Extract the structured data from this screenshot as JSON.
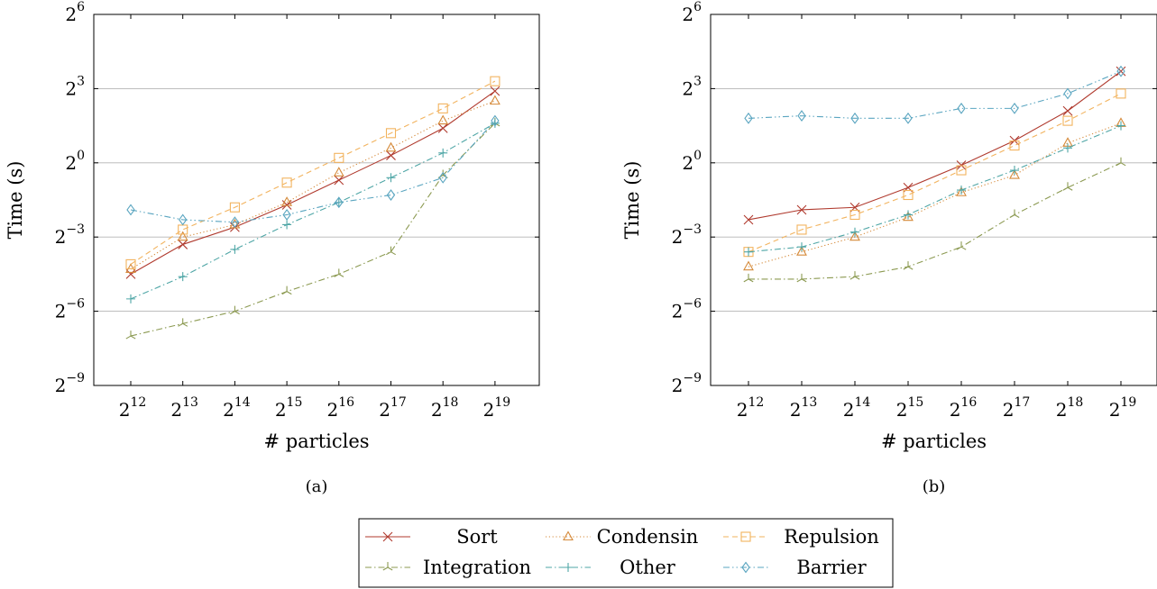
{
  "chart_data": [
    {
      "type": "line",
      "caption": "(a)",
      "xlabel": "# particles",
      "ylabel": "Time (s)",
      "y_scale": "log2",
      "ylim": [
        -9,
        6
      ],
      "x_ticks": [
        12,
        13,
        14,
        15,
        16,
        17,
        18,
        19
      ],
      "y_ticks": [
        -9,
        -6,
        -3,
        0,
        3,
        6
      ],
      "grid": "horizontal",
      "series": [
        {
          "name": "Sort",
          "exponents": [
            -4.5,
            -3.3,
            -2.6,
            -1.7,
            -0.7,
            0.3,
            1.4,
            2.9
          ]
        },
        {
          "name": "Condensin",
          "exponents": [
            -4.3,
            -3.0,
            -2.5,
            -1.6,
            -0.4,
            0.6,
            1.7,
            2.5
          ]
        },
        {
          "name": "Repulsion",
          "exponents": [
            -4.1,
            -2.7,
            -1.8,
            -0.8,
            0.2,
            1.2,
            2.2,
            3.3
          ]
        },
        {
          "name": "Integration",
          "exponents": [
            -7.0,
            -6.5,
            -6.0,
            -5.2,
            -4.5,
            -3.6,
            -0.5,
            1.6
          ]
        },
        {
          "name": "Other",
          "exponents": [
            -5.5,
            -4.6,
            -3.5,
            -2.5,
            -1.6,
            -0.6,
            0.4,
            1.6
          ]
        },
        {
          "name": "Barrier",
          "exponents": [
            -1.9,
            -2.3,
            -2.4,
            -2.1,
            -1.6,
            -1.3,
            -0.6,
            1.7
          ]
        }
      ]
    },
    {
      "type": "line",
      "caption": "(b)",
      "xlabel": "# particles",
      "ylabel": "Time (s)",
      "y_scale": "log2",
      "ylim": [
        -9,
        6
      ],
      "x_ticks": [
        12,
        13,
        14,
        15,
        16,
        17,
        18,
        19
      ],
      "y_ticks": [
        -9,
        -6,
        -3,
        0,
        3,
        6
      ],
      "grid": "horizontal",
      "series": [
        {
          "name": "Sort",
          "exponents": [
            -2.3,
            -1.9,
            -1.8,
            -1.0,
            -0.1,
            0.9,
            2.1,
            3.7
          ]
        },
        {
          "name": "Condensin",
          "exponents": [
            -4.2,
            -3.6,
            -3.0,
            -2.2,
            -1.2,
            -0.5,
            0.8,
            1.6
          ]
        },
        {
          "name": "Repulsion",
          "exponents": [
            -3.6,
            -2.7,
            -2.1,
            -1.3,
            -0.3,
            0.7,
            1.7,
            2.8
          ]
        },
        {
          "name": "Integration",
          "exponents": [
            -4.7,
            -4.7,
            -4.6,
            -4.2,
            -3.4,
            -2.1,
            -1.0,
            0.0
          ]
        },
        {
          "name": "Other",
          "exponents": [
            -3.6,
            -3.4,
            -2.8,
            -2.1,
            -1.1,
            -0.3,
            0.6,
            1.5
          ]
        },
        {
          "name": "Barrier",
          "exponents": [
            1.8,
            1.9,
            1.8,
            1.8,
            2.2,
            2.2,
            2.8,
            3.7
          ]
        }
      ]
    }
  ],
  "legend": {
    "placement": "bottom-center",
    "entries": [
      {
        "name": "Sort",
        "color": "#b03a2e",
        "marker": "x",
        "dash": "solid"
      },
      {
        "name": "Condensin",
        "color": "#d58a3a",
        "marker": "triangle",
        "dash": "dotted"
      },
      {
        "name": "Repulsion",
        "color": "#f2b35e",
        "marker": "square",
        "dash": "dashed"
      },
      {
        "name": "Integration",
        "color": "#8c9a52",
        "marker": "tri-star",
        "dash": "dash-dot"
      },
      {
        "name": "Other",
        "color": "#4fa6a6",
        "marker": "plus",
        "dash": "dash-dot"
      },
      {
        "name": "Barrier",
        "color": "#5aa5c0",
        "marker": "diamond",
        "dash": "dash-dot-dot"
      }
    ]
  }
}
